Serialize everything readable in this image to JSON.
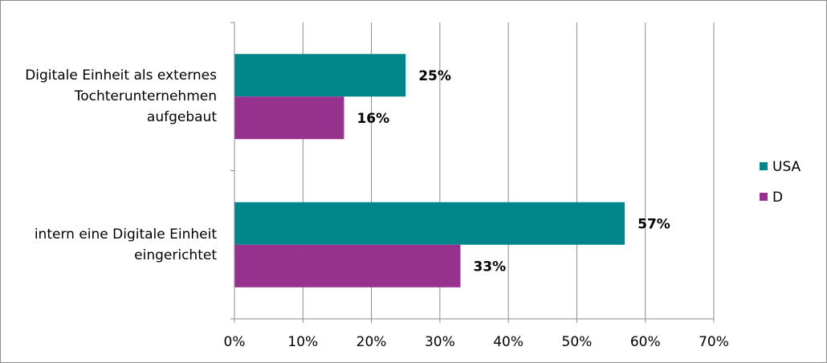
{
  "chart_data": {
    "type": "hbar",
    "categories": [
      "Digitale Einheit als externes Tochterunternehmen aufgebaut",
      "intern eine Digitale Einheit eingerichtet"
    ],
    "series": [
      {
        "name": "USA",
        "color": "#00868a",
        "values": [
          25,
          57
        ],
        "value_labels": [
          "25%",
          "57%"
        ]
      },
      {
        "name": "D",
        "color": "#96318e",
        "values": [
          16,
          33
        ],
        "value_labels": [
          "16%",
          "33%"
        ]
      }
    ],
    "xlim": [
      0,
      70
    ],
    "xticks": [
      {
        "value": 0,
        "label": "0%"
      },
      {
        "value": 10,
        "label": "10%"
      },
      {
        "value": 20,
        "label": "20%"
      },
      {
        "value": 30,
        "label": "30%"
      },
      {
        "value": 40,
        "label": "40%"
      },
      {
        "value": 50,
        "label": "50%"
      },
      {
        "value": 60,
        "label": "60%"
      },
      {
        "value": 70,
        "label": "70%"
      }
    ],
    "grid": true,
    "legend": "right"
  }
}
